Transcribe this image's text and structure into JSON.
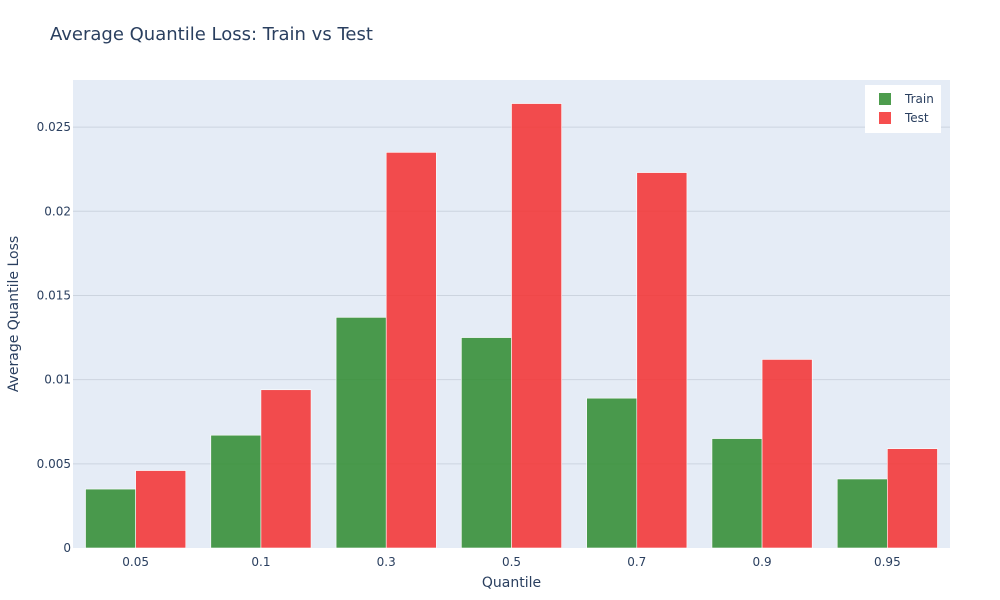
{
  "chart_data": {
    "type": "bar",
    "title": "Average Quantile Loss: Train vs Test",
    "xlabel": "Quantile",
    "ylabel": "Average Quantile Loss",
    "categories": [
      "0.05",
      "0.1",
      "0.3",
      "0.5",
      "0.7",
      "0.9",
      "0.95"
    ],
    "series": [
      {
        "name": "Train",
        "color": "#2e8b2e",
        "values": [
          0.0035,
          0.0067,
          0.0137,
          0.0125,
          0.0089,
          0.0065,
          0.0041
        ]
      },
      {
        "name": "Test",
        "color": "#f52f2f",
        "values": [
          0.0046,
          0.0094,
          0.0235,
          0.0264,
          0.0223,
          0.0112,
          0.0059
        ]
      }
    ],
    "ylim": [
      0,
      0.0278
    ],
    "yticks": [
      0,
      0.005,
      0.01,
      0.015,
      0.02,
      0.025
    ],
    "ytick_labels": [
      "0",
      "0.005",
      "0.01",
      "0.015",
      "0.02",
      "0.025"
    ],
    "grid": true,
    "legend_position": "top-right",
    "plot_background": "#e5ecf6",
    "grid_color": "#ccd4df"
  }
}
